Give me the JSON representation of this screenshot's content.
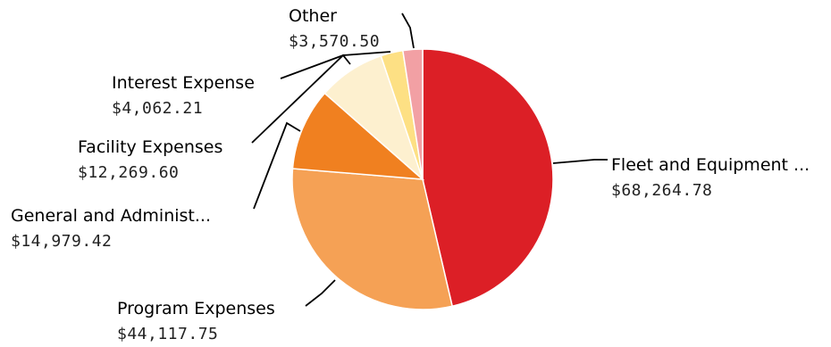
{
  "chart_data": {
    "type": "pie",
    "start_angle_deg": 0,
    "direction": "clockwise",
    "slices": [
      {
        "label": "Fleet and Equipment ...",
        "value": 68264.78,
        "value_text": "$68,264.78",
        "color": "#dc1f26"
      },
      {
        "label": "Program Expenses",
        "value": 44117.75,
        "value_text": "$44,117.75",
        "color": "#f5a155"
      },
      {
        "label": "General and Administ...",
        "value": 14979.42,
        "value_text": "$14,979.42",
        "color": "#f08020"
      },
      {
        "label": "Facility Expenses",
        "value": 12269.6,
        "value_text": "$12,269.60",
        "color": "#fdf0cf"
      },
      {
        "label": "Interest Expense",
        "value": 4062.21,
        "value_text": "$4,062.21",
        "color": "#fde084"
      },
      {
        "label": "Other",
        "value": 3570.5,
        "value_text": "$3,570.50",
        "color": "#f2a0a4"
      }
    ]
  }
}
